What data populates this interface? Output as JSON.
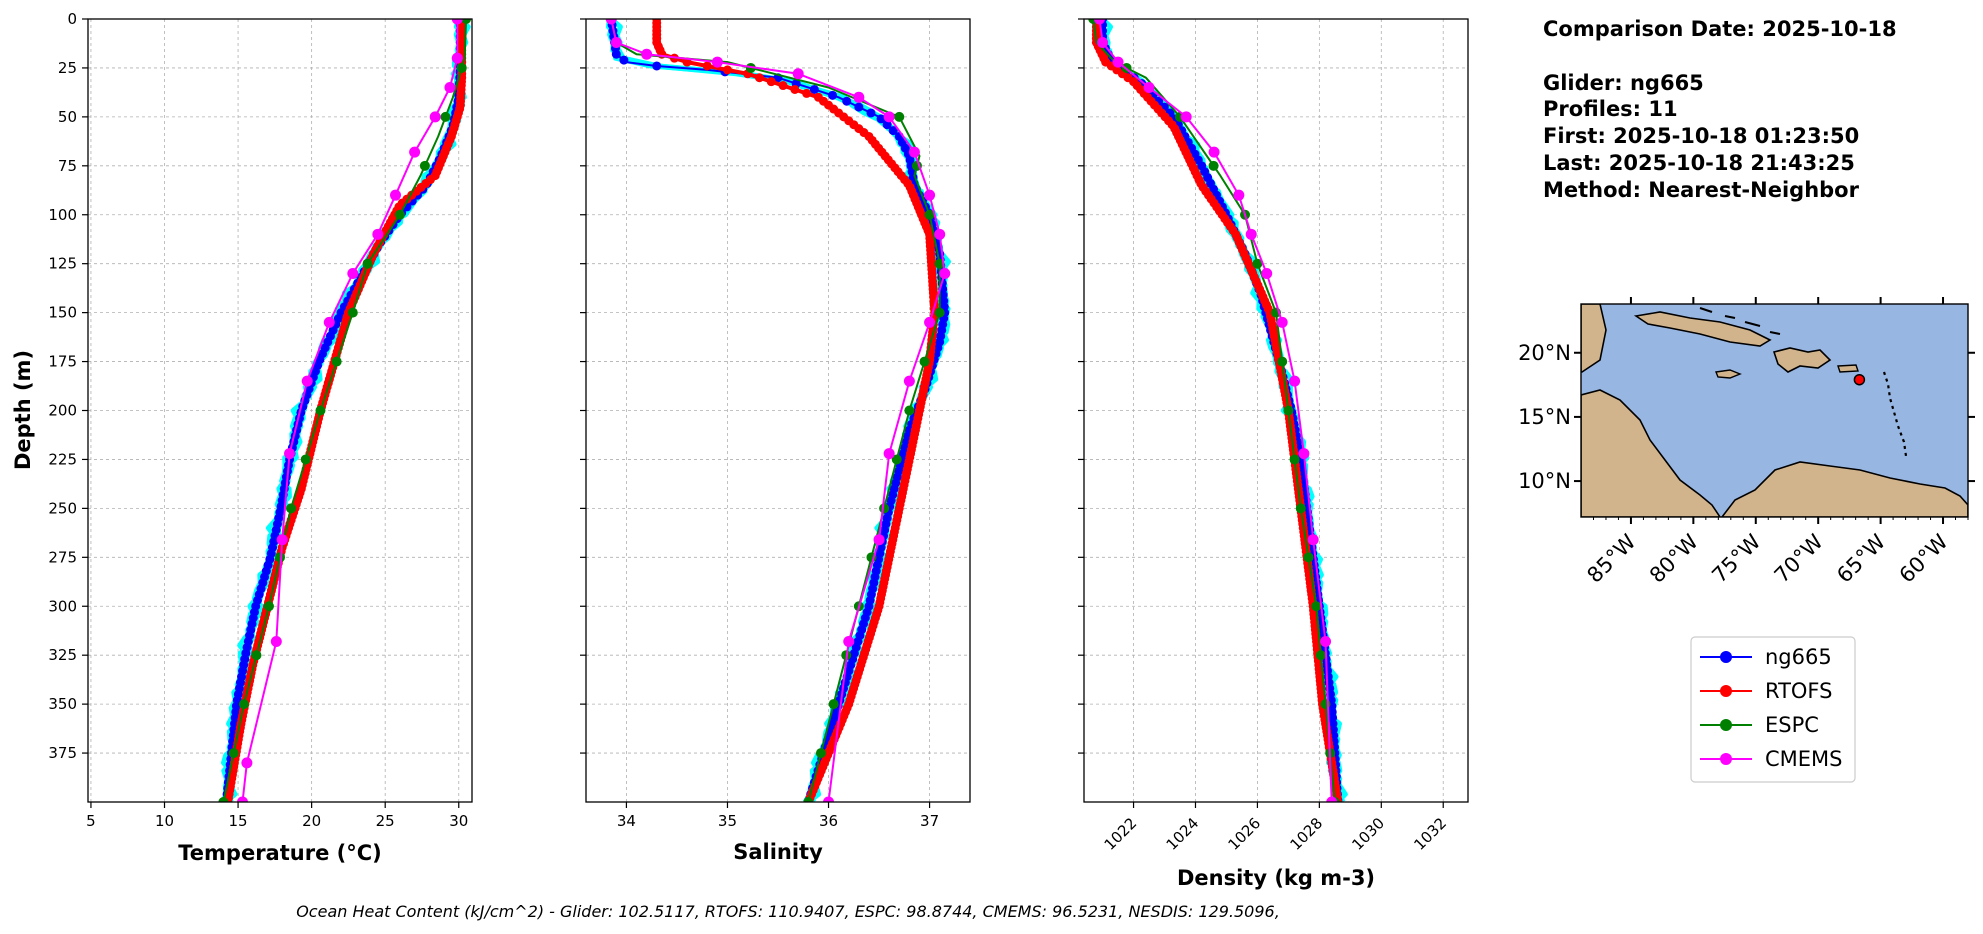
{
  "info": {
    "comparison_date": "Comparison Date: 2025-10-18",
    "glider": "Glider: ng665",
    "profiles": "Profiles: 11",
    "first": "First: 2025-10-18 01:23:50",
    "last": "Last: 2025-10-18 21:43:25",
    "method": "Method: Nearest-Neighbor"
  },
  "footer": "Ocean Heat Content (kJ/cm^2) - Glider: 102.5117,  RTOFS: 110.9407,  ESPC: 98.8744,  CMEMS: 96.5231,  NESDIS: 129.5096,",
  "colors": {
    "ng665": "#0000ff",
    "RTOFS": "#ff0000",
    "ESPC": "#008000",
    "CMEMS": "#ff00ff",
    "glider_profiles": "#00ffff",
    "ocean": "#98b6e2",
    "land": "#d2b48c"
  },
  "legend": [
    "ng665",
    "RTOFS",
    "ESPC",
    "CMEMS"
  ],
  "map": {
    "lon_ticks": [
      "85°W",
      "80°W",
      "75°W",
      "70°W",
      "65°W",
      "60°W"
    ],
    "lat_ticks": [
      "20°N",
      "15°N",
      "10°N"
    ],
    "lon_range": [
      -89,
      -58
    ],
    "lat_range": [
      7.2,
      23.8
    ],
    "glider_location": {
      "lon": -66.7,
      "lat": 17.9
    }
  },
  "chart_data": [
    {
      "type": "line",
      "xlabel": "Temperature (°C)",
      "ylabel": "Depth (m)",
      "xlim": [
        4.8,
        30.9
      ],
      "ylim": [
        400,
        0
      ],
      "xticks": [
        5,
        10,
        15,
        20,
        25,
        30
      ],
      "yticks": [
        0,
        25,
        50,
        75,
        100,
        125,
        150,
        175,
        200,
        225,
        250,
        275,
        300,
        325,
        350,
        375
      ],
      "grid": true,
      "series": [
        {
          "name": "ng665",
          "x": [
            30.1,
            30.1,
            30.0,
            29.6,
            28.8,
            27.8,
            26.0,
            24.6,
            23.5,
            22.0,
            20.5,
            19.3,
            18.5,
            17.9,
            17.2,
            16.2,
            15.5,
            14.9,
            14.2
          ],
          "y": [
            0,
            25,
            40,
            55,
            70,
            85,
            100,
            115,
            130,
            150,
            175,
            200,
            225,
            250,
            275,
            300,
            325,
            350,
            400
          ]
        },
        {
          "name": "RTOFS",
          "x": [
            30.2,
            30.2,
            30.1,
            29.5,
            28.4,
            26.0,
            24.2,
            22.5,
            20.6,
            19.3,
            18.0,
            17.0,
            16.0,
            15.2,
            14.3
          ],
          "y": [
            0,
            30,
            45,
            60,
            80,
            95,
            120,
            150,
            200,
            240,
            270,
            300,
            330,
            360,
            400
          ]
        },
        {
          "name": "ESPC",
          "x": [
            30.5,
            30.4,
            29.6,
            28.6,
            27.4,
            26.0,
            23.8,
            22.8,
            20.6,
            18.6,
            17.1,
            15.4,
            14.0
          ],
          "y": [
            0,
            20,
            40,
            60,
            80,
            100,
            125,
            150,
            200,
            250,
            300,
            350,
            400
          ]
        },
        {
          "name": "CMEMS",
          "x": [
            29.9,
            29.9,
            29.4,
            28.4,
            27.0,
            25.7,
            24.5,
            22.8,
            21.2,
            19.7,
            18.5,
            18.0,
            17.6,
            15.6,
            15.3
          ],
          "y": [
            0,
            20,
            35,
            50,
            68,
            90,
            110,
            130,
            155,
            185,
            222,
            266,
            318,
            380,
            400
          ]
        }
      ]
    },
    {
      "type": "line",
      "xlabel": "Salinity",
      "xlim": [
        33.6,
        37.4
      ],
      "ylim": [
        400,
        0
      ],
      "xticks": [
        34,
        35,
        36,
        37
      ],
      "grid": true,
      "series": [
        {
          "name": "ng665",
          "x": [
            33.85,
            33.9,
            34.0,
            34.3,
            34.8,
            35.5,
            36.1,
            36.5,
            36.7,
            36.8,
            36.85,
            37.0,
            37.1,
            37.15,
            37.1,
            36.95,
            36.8,
            36.6,
            36.4,
            36.1,
            35.8
          ],
          "y": [
            0,
            18,
            22,
            24,
            26,
            30,
            40,
            50,
            60,
            70,
            85,
            100,
            120,
            150,
            165,
            190,
            210,
            250,
            300,
            350,
            400
          ]
        },
        {
          "name": "RTOFS",
          "x": [
            34.3,
            34.3,
            34.35,
            34.6,
            35.2,
            35.9,
            36.4,
            36.8,
            37.0,
            37.05,
            37.0,
            36.9,
            36.7,
            36.5,
            36.2,
            35.8
          ],
          "y": [
            0,
            12,
            18,
            22,
            28,
            40,
            60,
            85,
            110,
            150,
            175,
            200,
            250,
            300,
            350,
            400
          ]
        },
        {
          "name": "ESPC",
          "x": [
            33.85,
            33.9,
            34.1,
            35.0,
            36.0,
            36.7,
            36.9,
            36.85,
            37.0,
            37.1,
            37.1,
            36.8,
            36.55,
            36.3,
            36.05,
            35.8
          ],
          "y": [
            0,
            12,
            18,
            22,
            35,
            50,
            70,
            80,
            100,
            125,
            150,
            200,
            250,
            300,
            350,
            400
          ]
        },
        {
          "name": "CMEMS",
          "x": [
            33.85,
            33.9,
            34.2,
            34.9,
            35.7,
            36.3,
            36.6,
            36.85,
            37.0,
            37.1,
            37.15,
            37.0,
            36.8,
            36.6,
            36.5,
            36.2,
            36.0
          ],
          "y": [
            0,
            12,
            18,
            22,
            28,
            40,
            50,
            68,
            90,
            110,
            130,
            155,
            185,
            222,
            266,
            318,
            400
          ]
        }
      ]
    },
    {
      "type": "line",
      "xlabel": "Density (kg m-3)",
      "xlim": [
        1020.4,
        1032.8
      ],
      "ylim": [
        400,
        0
      ],
      "xticks": [
        1022,
        1024,
        1026,
        1028,
        1030,
        1032
      ],
      "grid": true,
      "series": [
        {
          "name": "ng665",
          "x": [
            1021.0,
            1021.0,
            1021.3,
            1022.2,
            1023.3,
            1024.2,
            1025.0,
            1025.6,
            1026.1,
            1026.7,
            1027.1,
            1027.4,
            1027.6,
            1027.8,
            1028.0,
            1028.2,
            1028.4,
            1028.6
          ],
          "y": [
            0,
            12,
            22,
            32,
            50,
            75,
            100,
            120,
            140,
            175,
            200,
            225,
            250,
            275,
            300,
            325,
            350,
            400
          ]
        },
        {
          "name": "RTOFS",
          "x": [
            1020.8,
            1020.8,
            1021.1,
            1022.0,
            1023.3,
            1024.2,
            1025.3,
            1026.4,
            1027.0,
            1027.4,
            1027.8,
            1028.1,
            1028.6
          ],
          "y": [
            0,
            12,
            22,
            32,
            55,
            85,
            110,
            150,
            200,
            250,
            300,
            350,
            400
          ]
        },
        {
          "name": "ESPC",
          "x": [
            1020.7,
            1020.8,
            1021.4,
            1022.4,
            1023.5,
            1024.8,
            1025.6,
            1026.0,
            1026.6,
            1027.0,
            1027.4,
            1027.9,
            1028.2,
            1028.5
          ],
          "y": [
            0,
            12,
            22,
            30,
            50,
            80,
            100,
            125,
            150,
            200,
            250,
            300,
            350,
            400
          ]
        },
        {
          "name": "CMEMS",
          "x": [
            1020.9,
            1021.0,
            1021.5,
            1022.5,
            1023.7,
            1024.6,
            1025.4,
            1025.8,
            1026.3,
            1026.8,
            1027.2,
            1027.5,
            1027.8,
            1028.2,
            1028.4
          ],
          "y": [
            0,
            12,
            22,
            35,
            50,
            68,
            90,
            110,
            130,
            155,
            185,
            222,
            266,
            318,
            400
          ]
        }
      ]
    }
  ]
}
